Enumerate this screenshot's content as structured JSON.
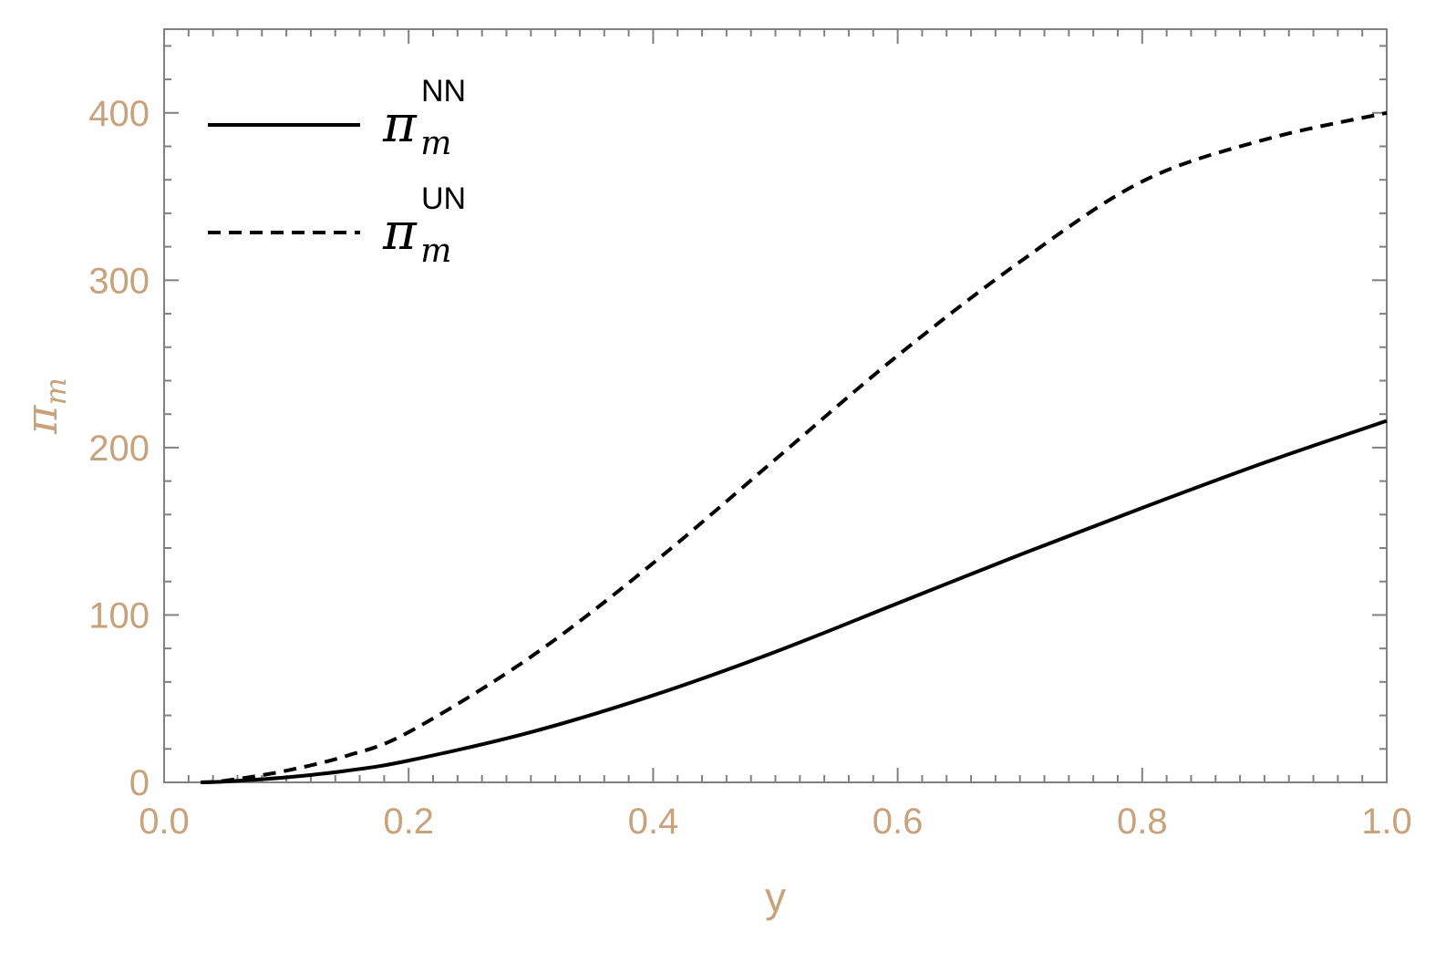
{
  "chart_data": {
    "type": "line",
    "title": "",
    "xlabel": "y",
    "ylabel": "π",
    "ylabel_sub": "m",
    "xlim": [
      0.0,
      1.0
    ],
    "ylim": [
      0,
      450
    ],
    "xticks": [
      "0.0",
      "0.2",
      "0.4",
      "0.6",
      "0.8",
      "1.0"
    ],
    "xtick_values": [
      0.0,
      0.2,
      0.4,
      0.6,
      0.8,
      1.0
    ],
    "yticks": [
      "0",
      "100",
      "200",
      "300",
      "400"
    ],
    "ytick_values": [
      0,
      100,
      200,
      300,
      400
    ],
    "grid": false,
    "frame": true,
    "legend_position": "top-left",
    "series": [
      {
        "name": "π_m^NN",
        "legend_main": "π",
        "legend_sub": "m",
        "legend_sup": "NN",
        "style": "solid",
        "color": "#000000",
        "x": [
          0.03,
          0.05,
          0.1,
          0.15,
          0.2,
          0.3,
          0.4,
          0.5,
          0.6,
          0.7,
          0.8,
          0.9,
          1.0
        ],
        "y": [
          0,
          0.5,
          3,
          7,
          13,
          30,
          52,
          78,
          107,
          136,
          164,
          191,
          216
        ]
      },
      {
        "name": "π_m^UN",
        "legend_main": "π",
        "legend_sub": "m",
        "legend_sup": "UN",
        "style": "dashed",
        "color": "#000000",
        "x": [
          0.03,
          0.05,
          0.1,
          0.15,
          0.2,
          0.3,
          0.4,
          0.5,
          0.6,
          0.7,
          0.8,
          0.9,
          1.0
        ],
        "y": [
          0,
          1,
          7,
          16,
          30,
          75,
          131,
          193,
          255,
          311,
          359,
          384,
          400
        ]
      }
    ],
    "colors": {
      "tick_label": "#c8a27a",
      "axis_label": "#c8a27a",
      "frame": "#808080",
      "line": "#000000"
    }
  }
}
